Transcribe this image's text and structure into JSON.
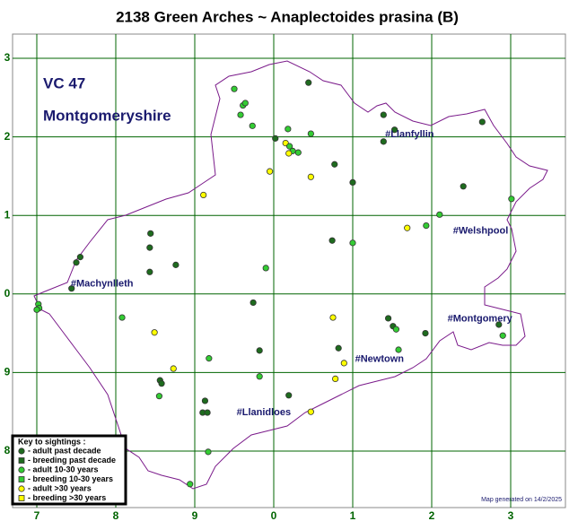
{
  "title": "2138 Green Arches ~ Anaplectoides prasina (B)",
  "region_code": "VC 47",
  "region_name": "Montgomeryshire",
  "x_labels": [
    "7",
    "8",
    "9",
    "0",
    "1",
    "2",
    "3"
  ],
  "y_labels": [
    "3",
    "2",
    "1",
    "0",
    "9",
    "8"
  ],
  "towns": [
    {
      "label": "#Llanfyllin",
      "e": 4.41,
      "n": 4.03
    },
    {
      "label": "#Welshpool",
      "e": 5.27,
      "n": 2.8
    },
    {
      "label": "#Machynlleth",
      "e": 0.43,
      "n": 2.13
    },
    {
      "label": "#Montgomery",
      "e": 5.2,
      "n": 1.68
    },
    {
      "label": "#Newtown",
      "e": 4.03,
      "n": 1.17
    },
    {
      "label": "#Llanidloes",
      "e": 2.53,
      "n": 0.49
    }
  ],
  "key": {
    "title": "Key to sightings :",
    "items": [
      {
        "label": "- adult past decade",
        "color": "#1e6b1e",
        "shape": "circle"
      },
      {
        "label": "- breeding past decade",
        "color": "#1e6b1e",
        "shape": "square"
      },
      {
        "label": "- adult 10-30 years",
        "color": "#33cc33",
        "shape": "circle"
      },
      {
        "label": "- breeding 10-30 years",
        "color": "#33cc33",
        "shape": "square"
      },
      {
        "label": "- adult >30 years",
        "color": "#ffff00",
        "shape": "circle"
      },
      {
        "label": "- breeding >30 years",
        "color": "#ffff00",
        "shape": "square"
      }
    ]
  },
  "footer": "Map generated on 14/2/2025",
  "sightings": [
    [
      2.5,
      4.61,
      2
    ],
    [
      2.61,
      4.4,
      2
    ],
    [
      2.64,
      4.43,
      2
    ],
    [
      2.58,
      4.28,
      2
    ],
    [
      3.44,
      4.69,
      0
    ],
    [
      2.73,
      4.14,
      2
    ],
    [
      3.02,
      3.98,
      0
    ],
    [
      3.18,
      4.1,
      2
    ],
    [
      3.47,
      4.04,
      2
    ],
    [
      3.15,
      3.92,
      4
    ],
    [
      3.2,
      3.88,
      2
    ],
    [
      3.24,
      3.82,
      2
    ],
    [
      3.19,
      3.79,
      4
    ],
    [
      3.31,
      3.8,
      2
    ],
    [
      2.95,
      3.56,
      4
    ],
    [
      3.47,
      3.49,
      4
    ],
    [
      3.77,
      3.65,
      0
    ],
    [
      4.0,
      3.42,
      0
    ],
    [
      4.39,
      4.28,
      0
    ],
    [
      4.53,
      4.09,
      0
    ],
    [
      4.39,
      3.94,
      0
    ],
    [
      5.64,
      4.19,
      0
    ],
    [
      2.11,
      3.26,
      4
    ],
    [
      5.4,
      3.37,
      0
    ],
    [
      6.01,
      3.21,
      2
    ],
    [
      5.1,
      3.01,
      2
    ],
    [
      4.93,
      2.87,
      2
    ],
    [
      4.69,
      2.84,
      4
    ],
    [
      3.74,
      2.68,
      0
    ],
    [
      4.0,
      2.65,
      2
    ],
    [
      1.44,
      2.77,
      0
    ],
    [
      1.43,
      2.59,
      0
    ],
    [
      1.76,
      2.37,
      0
    ],
    [
      1.43,
      2.28,
      0
    ],
    [
      0.55,
      2.47,
      0
    ],
    [
      0.5,
      2.4,
      0
    ],
    [
      0.44,
      2.07,
      0
    ],
    [
      0.02,
      1.87,
      2
    ],
    [
      0.03,
      1.82,
      2
    ],
    [
      0.0,
      1.8,
      2
    ],
    [
      1.08,
      1.7,
      2
    ],
    [
      1.49,
      1.51,
      4
    ],
    [
      2.9,
      2.33,
      2
    ],
    [
      2.74,
      1.89,
      0
    ],
    [
      3.75,
      1.7,
      4
    ],
    [
      4.45,
      1.69,
      0
    ],
    [
      4.51,
      1.59,
      0
    ],
    [
      4.55,
      1.55,
      2
    ],
    [
      4.92,
      1.5,
      0
    ],
    [
      5.85,
      1.61,
      0
    ],
    [
      5.9,
      1.47,
      2
    ],
    [
      3.82,
      1.31,
      0
    ],
    [
      2.82,
      1.28,
      0
    ],
    [
      4.58,
      1.29,
      2
    ],
    [
      3.89,
      1.12,
      4
    ],
    [
      2.18,
      1.18,
      2
    ],
    [
      1.73,
      1.05,
      4
    ],
    [
      1.56,
      0.9,
      0
    ],
    [
      1.58,
      0.86,
      0
    ],
    [
      1.55,
      0.7,
      2
    ],
    [
      2.82,
      0.95,
      2
    ],
    [
      3.78,
      0.92,
      4
    ],
    [
      3.19,
      0.71,
      0
    ],
    [
      2.13,
      0.64,
      0
    ],
    [
      2.1,
      0.49,
      0
    ],
    [
      2.16,
      0.49,
      0
    ],
    [
      3.47,
      0.5,
      4
    ],
    [
      2.17,
      -0.01,
      2
    ],
    [
      1.94,
      -0.42,
      2
    ]
  ]
}
